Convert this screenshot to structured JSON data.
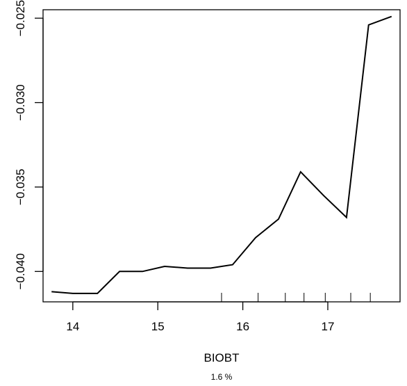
{
  "chart_data": {
    "type": "line",
    "xlabel": "BIOBT",
    "ylabel": "",
    "subtitle": "1.6 %",
    "xlim": [
      13.65,
      17.85
    ],
    "ylim": [
      -0.0418,
      -0.0245
    ],
    "x_ticks": [
      {
        "value": 14,
        "label": "14"
      },
      {
        "value": 15,
        "label": "15"
      },
      {
        "value": 16,
        "label": "16"
      },
      {
        "value": 17,
        "label": "17"
      }
    ],
    "y_ticks": [
      {
        "value": -0.04,
        "label": "−0.040"
      },
      {
        "value": -0.035,
        "label": "−0.035"
      },
      {
        "value": -0.03,
        "label": "−0.030"
      },
      {
        "value": -0.025,
        "label": "−0.025"
      }
    ],
    "series": [
      {
        "x": [
          13.75,
          14.0,
          14.29,
          14.55,
          14.82,
          15.08,
          15.35,
          15.62,
          15.88,
          16.15,
          16.42,
          16.68,
          16.95,
          17.22,
          17.48,
          17.75
        ],
        "y": [
          -0.0412,
          -0.0413,
          -0.0413,
          -0.04,
          -0.04,
          -0.0397,
          -0.0398,
          -0.0398,
          -0.0396,
          -0.038,
          -0.0369,
          -0.0341,
          -0.0355,
          -0.0368,
          -0.0254,
          -0.0249
        ]
      }
    ],
    "rug": [
      15.75,
      16.18,
      16.5,
      16.72,
      16.97,
      17.27,
      17.5
    ],
    "grid": false,
    "legend": "none"
  }
}
